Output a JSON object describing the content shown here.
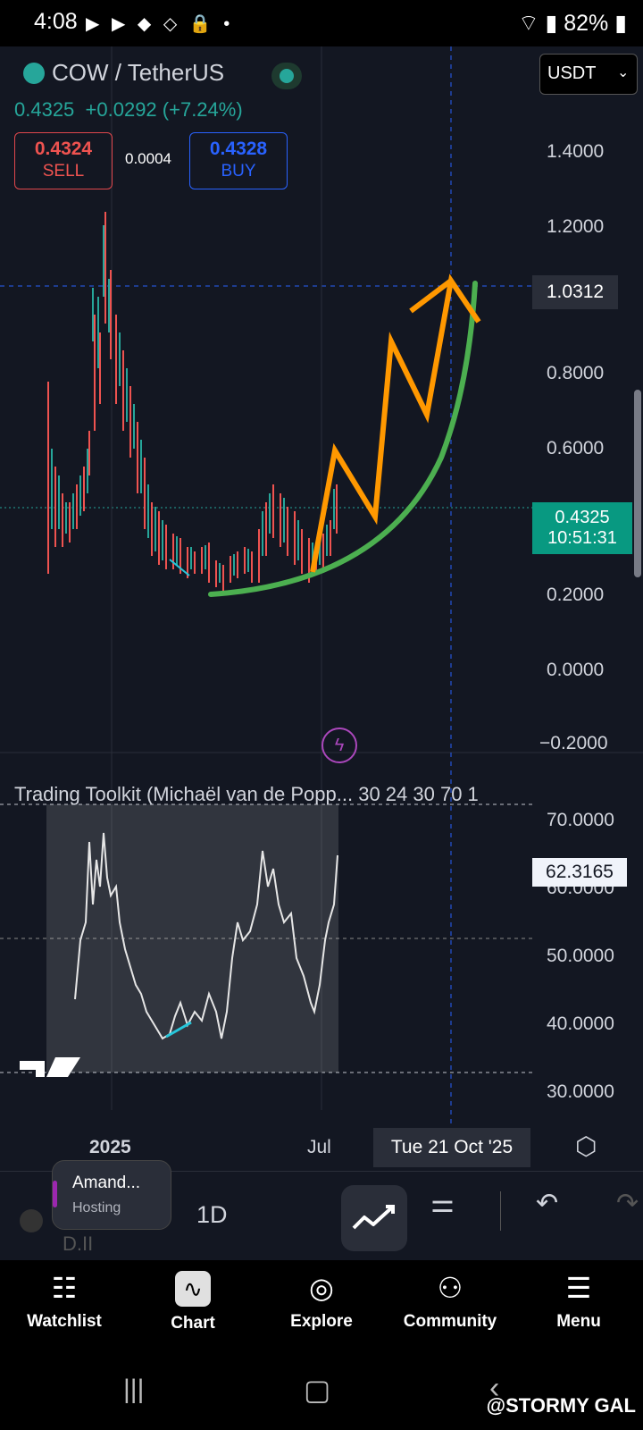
{
  "status": {
    "time": "4:08",
    "battery": "82%"
  },
  "header": {
    "pair": "COW / TetherUS",
    "price": "0.4325",
    "change": "+0.0292 (+7.24%)",
    "sell_price": "0.4324",
    "sell_label": "SELL",
    "spread": "0.0004",
    "buy_price": "0.4328",
    "buy_label": "BUY",
    "currency": "USDT"
  },
  "price_axis": [
    "1.4000",
    "1.2000",
    "0.8000",
    "0.6000",
    "0.2000",
    "0.0000",
    "−0.2000"
  ],
  "crosshair_price": "1.0312",
  "current_price_tag": {
    "price": "0.4325",
    "countdown": "10:51:31"
  },
  "indicator": {
    "title": "Trading Toolkit (Michaël van de Popp... 30 24 30 70 1",
    "axis": [
      "70.0000",
      "60.0000",
      "50.0000",
      "40.0000",
      "30.0000"
    ],
    "value": "62.3165"
  },
  "time_axis": {
    "year": "2025",
    "month": "Jul",
    "crosshair_date": "Tue 21 Oct '25"
  },
  "toolbar": {
    "popup_title": "Amand...",
    "popup_sub": "Hosting",
    "timeframe": "1D"
  },
  "nav": [
    {
      "label": "Watchlist",
      "icon": "watchlist-icon"
    },
    {
      "label": "Chart",
      "icon": "chart-icon"
    },
    {
      "label": "Explore",
      "icon": "compass-icon"
    },
    {
      "label": "Community",
      "icon": "community-icon"
    },
    {
      "label": "Menu",
      "icon": "menu-icon"
    }
  ],
  "watermark": "@STORMY GAL",
  "colors": {
    "up": "#26a69a",
    "down": "#ef5350",
    "annot_orange": "#ff9800",
    "annot_green": "#4caf50",
    "accent": "#2962ff"
  }
}
